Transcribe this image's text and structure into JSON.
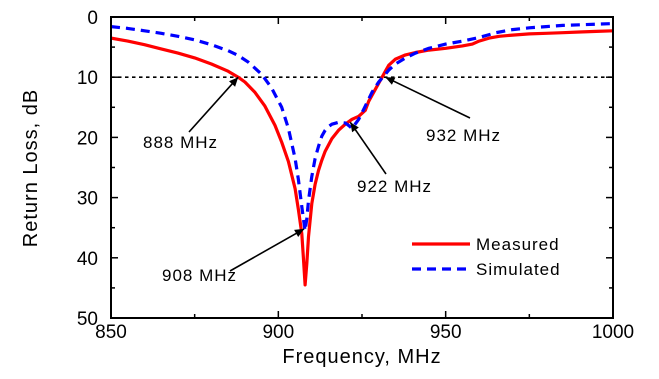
{
  "chart_data": {
    "type": "line",
    "xlabel": "Frequency, MHz",
    "ylabel": "Return Loss, dB",
    "xlim": [
      850,
      1000
    ],
    "ylim": [
      0,
      50
    ],
    "y_inverted": true,
    "x_ticks": [
      850,
      900,
      950,
      1000
    ],
    "y_ticks": [
      0,
      10,
      20,
      30,
      40,
      50
    ],
    "x_tick_labels": [
      "850",
      "900",
      "950",
      "1000"
    ],
    "y_tick_labels": [
      "0",
      "10",
      "20",
      "30",
      "40",
      "50"
    ],
    "grid": false,
    "reference_line": {
      "y": 10,
      "style": "dashed",
      "color": "#000000"
    },
    "legend_position": "lower-right",
    "series": [
      {
        "name": "Measured",
        "color": "#ff0000",
        "style": "solid",
        "x": [
          850,
          855,
          860,
          865,
          870,
          875,
          880,
          885,
          888,
          890,
          893,
          896,
          899,
          901,
          903,
          905,
          906,
          907,
          907.5,
          908,
          908.5,
          909,
          910,
          911,
          912,
          913,
          914,
          916,
          918,
          920,
          922,
          924,
          926,
          927,
          928,
          929,
          930,
          931,
          932,
          933,
          935,
          938,
          941,
          945,
          950,
          955,
          958,
          960,
          963,
          966,
          970,
          975,
          980,
          985,
          990,
          995,
          1000
        ],
        "y": [
          3.5,
          4.0,
          4.6,
          5.3,
          6.0,
          6.8,
          7.8,
          9.0,
          10.0,
          10.8,
          12.5,
          14.8,
          18.0,
          20.8,
          24.0,
          28.5,
          32.0,
          36.0,
          40.0,
          44.5,
          41.0,
          36.5,
          31.0,
          27.8,
          25.5,
          23.8,
          22.3,
          20.2,
          18.8,
          17.8,
          17.0,
          16.5,
          15.5,
          14.0,
          13.0,
          12.0,
          11.0,
          10.0,
          9.0,
          8.0,
          7.0,
          6.3,
          5.9,
          5.5,
          5.2,
          4.8,
          4.5,
          4.0,
          3.5,
          3.2,
          3.0,
          2.8,
          2.7,
          2.6,
          2.5,
          2.4,
          2.3
        ]
      },
      {
        "name": "Simulated",
        "color": "#0000ff",
        "style": "dashed",
        "x": [
          850,
          855,
          860,
          865,
          870,
          875,
          880,
          885,
          888,
          891,
          895,
          898,
          901,
          903,
          905,
          906,
          907,
          907.5,
          908,
          908.5,
          909,
          910,
          911,
          912,
          913,
          914,
          915,
          916,
          918,
          920,
          921,
          922,
          924,
          926,
          928,
          930,
          932,
          933,
          935,
          938,
          941,
          945,
          950,
          955,
          960,
          965,
          970,
          975,
          980,
          985,
          990,
          995,
          1000
        ],
        "y": [
          1.6,
          1.9,
          2.3,
          2.7,
          3.2,
          3.8,
          4.6,
          5.6,
          6.4,
          7.5,
          9.5,
          11.8,
          15.0,
          18.5,
          23.5,
          27.0,
          31.5,
          33.5,
          35.5,
          33.5,
          30.5,
          26.5,
          23.5,
          21.5,
          19.8,
          18.8,
          18.2,
          17.8,
          17.5,
          17.6,
          18.0,
          18.5,
          17.0,
          14.8,
          12.5,
          10.8,
          9.5,
          8.8,
          7.8,
          6.8,
          6.0,
          5.2,
          4.5,
          4.0,
          3.4,
          2.6,
          2.1,
          1.8,
          1.6,
          1.4,
          1.3,
          1.2,
          1.1
        ]
      }
    ],
    "annotations": [
      {
        "label": "888 MHz",
        "x": 888,
        "y": 10
      },
      {
        "label": "908 MHz",
        "x": 907.7,
        "y": 35.2
      },
      {
        "label": "922 MHz",
        "x": 921.5,
        "y": 17.5
      },
      {
        "label": "932 MHz",
        "x": 932,
        "y": 10
      }
    ]
  }
}
